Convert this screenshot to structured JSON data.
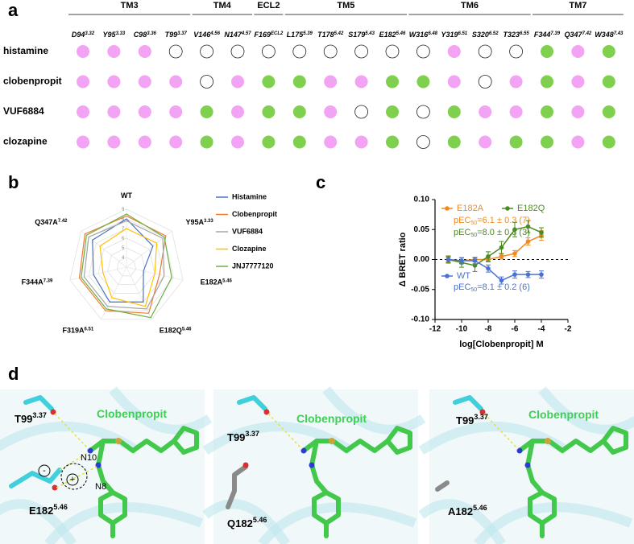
{
  "panel_letters": [
    "a",
    "b",
    "c",
    "d"
  ],
  "panel_a": {
    "groups": [
      {
        "name": "TM3",
        "residues": [
          {
            "name": "D94",
            "sup": "3.32"
          },
          {
            "name": "Y95",
            "sup": "3.33"
          },
          {
            "name": "C98",
            "sup": "3.36"
          },
          {
            "name": "T99",
            "sup": "3.37"
          }
        ]
      },
      {
        "name": "TM4",
        "residues": [
          {
            "name": "V146",
            "sup": "4.56"
          },
          {
            "name": "N147",
            "sup": "4.57"
          }
        ]
      },
      {
        "name": "ECL2",
        "residues": [
          {
            "name": "F169",
            "sup": "ECL2"
          }
        ]
      },
      {
        "name": "TM5",
        "residues": [
          {
            "name": "L175",
            "sup": "5.39"
          },
          {
            "name": "T178",
            "sup": "5.42"
          },
          {
            "name": "S179",
            "sup": "5.43"
          },
          {
            "name": "E182",
            "sup": "5.46"
          }
        ]
      },
      {
        "name": "TM6",
        "residues": [
          {
            "name": "W316",
            "sup": "6.48"
          },
          {
            "name": "Y319",
            "sup": "6.51"
          },
          {
            "name": "S320",
            "sup": "6.52"
          },
          {
            "name": "T323",
            "sup": "6.55"
          }
        ]
      },
      {
        "name": "TM7",
        "residues": [
          {
            "name": "F344",
            "sup": "7.39"
          },
          {
            "name": "Q347",
            "sup": "7.42"
          },
          {
            "name": "W348",
            "sup": "7.43"
          }
        ]
      }
    ],
    "ligands": [
      {
        "name": "histamine",
        "cells": [
          "#f3a3f3",
          "#f3a3f3",
          "#f3a3f3",
          "none",
          "none",
          "none",
          "none",
          "none",
          "none",
          "none",
          "none",
          "none",
          "#f3a3f3",
          "none",
          "none",
          "#7fd04e",
          "#f3a3f3",
          "#7fd04e"
        ]
      },
      {
        "name": "clobenpropit",
        "cells": [
          "#f3a3f3",
          "#f3a3f3",
          "#f3a3f3",
          "#f3a3f3",
          "none",
          "#f3a3f3",
          "#7fd04e",
          "#7fd04e",
          "#f3a3f3",
          "#f3a3f3",
          "#7fd04e",
          "#7fd04e",
          "#f3a3f3",
          "none",
          "#f3a3f3",
          "#7fd04e",
          "#f3a3f3",
          "#7fd04e"
        ]
      },
      {
        "name": "VUF6884",
        "cells": [
          "#f3a3f3",
          "#f3a3f3",
          "#f3a3f3",
          "#f3a3f3",
          "#7fd04e",
          "#f3a3f3",
          "#7fd04e",
          "#7fd04e",
          "#f3a3f3",
          "none",
          "#7fd04e",
          "none",
          "#7fd04e",
          "#f3a3f3",
          "#f3a3f3",
          "#7fd04e",
          "#f3a3f3",
          "#7fd04e"
        ]
      },
      {
        "name": "clozapine",
        "cells": [
          "#f3a3f3",
          "#f3a3f3",
          "#f3a3f3",
          "#f3a3f3",
          "#7fd04e",
          "#f3a3f3",
          "#7fd04e",
          "#7fd04e",
          "#f3a3f3",
          "#f3a3f3",
          "#7fd04e",
          "none",
          "#7fd04e",
          "#f3a3f3",
          "#7fd04e",
          "#7fd04e",
          "#f3a3f3",
          "#7fd04e"
        ]
      }
    ]
  },
  "chart_data": [
    {
      "type": "radar",
      "categories": [
        "WT",
        "Y95A",
        "E182A",
        "E182Q",
        "F319A",
        "F344A",
        "Q347A"
      ],
      "category_sups": [
        null,
        "3.33",
        "5.46",
        "5.46",
        "6.51",
        "7.39",
        "7.42"
      ],
      "rlim": [
        3,
        9
      ],
      "rticks": [
        4,
        5,
        6,
        7,
        8,
        9
      ],
      "series": [
        {
          "name": "Histamine",
          "color": "#4a72c4",
          "values": [
            8,
            6.5,
            4.8,
            7,
            7,
            6.5,
            7.5
          ]
        },
        {
          "name": "Clobenpropit",
          "color": "#ed7d31",
          "values": [
            8.3,
            8.2,
            6.5,
            8.3,
            8,
            8,
            8.5
          ]
        },
        {
          "name": "VUF6884",
          "color": "#a5a5a5",
          "values": [
            7.8,
            7.8,
            7,
            7.8,
            7.5,
            7.5,
            8
          ]
        },
        {
          "name": "Clozapine",
          "color": "#ffc000",
          "values": [
            7,
            7,
            6,
            7.5,
            6.5,
            5.5,
            6.5
          ]
        },
        {
          "name": "JNJ7777120",
          "color": "#70ad47",
          "values": [
            8.5,
            8,
            7.8,
            8.8,
            7.8,
            7.8,
            8.3
          ]
        }
      ]
    },
    {
      "type": "line",
      "xlabel": "log[Clobenpropit] M",
      "ylabel": "Δ BRET ratio",
      "x": [
        -11,
        -10,
        -9,
        -8,
        -7,
        -6,
        -5,
        -4
      ],
      "xlim": [
        -12,
        -2
      ],
      "xticks": [
        -12,
        -10,
        -8,
        -6,
        -4,
        -2
      ],
      "ylim": [
        -0.1,
        0.1
      ],
      "yticks": [
        {
          "value": -0.1,
          "label": "-0.10"
        },
        {
          "value": -0.05,
          "label": "-0.05"
        },
        {
          "value": 0,
          "label": "0.00"
        },
        {
          "value": 0.05,
          "label": "0.05"
        },
        {
          "value": 0.1,
          "label": "0.10"
        }
      ],
      "series": [
        {
          "name": "E182A",
          "color": "#f28a1d",
          "values": [
            0,
            -0.002,
            0,
            0,
            0.005,
            0.01,
            0.03,
            0.04
          ],
          "errors": [
            0.005,
            0.005,
            0.004,
            0.004,
            0.004,
            0.005,
            0.006,
            0.008
          ],
          "annotation": [
            "pEC",
            "50",
            "=6.1 ± 0.3 (7)"
          ]
        },
        {
          "name": "E182Q",
          "color": "#4e8a22",
          "values": [
            0,
            -0.005,
            -0.01,
            0.005,
            0.02,
            0.05,
            0.055,
            0.045
          ],
          "errors": [
            0.006,
            0.008,
            0.01,
            0.008,
            0.01,
            0.012,
            0.01,
            0.008
          ],
          "annotation": [
            "pEC",
            "50",
            "=8.0 ± 0.3 (3)"
          ]
        },
        {
          "name": "WT",
          "color": "#4a72d6",
          "values": [
            0,
            -0.002,
            -0.002,
            -0.015,
            -0.035,
            -0.025,
            -0.025,
            -0.025
          ],
          "errors": [
            0.004,
            0.005,
            0.005,
            0.006,
            0.006,
            0.006,
            0.005,
            0.006
          ],
          "annotation": [
            "pEC",
            "50",
            "=8.1 ± 0.2 (6)"
          ]
        }
      ]
    }
  ],
  "panel_d": {
    "images": [
      {
        "labels": [
          {
            "text": "T99",
            "sup": "3.37"
          },
          {
            "text": "Clobenpropit"
          },
          {
            "text": "N10"
          },
          {
            "text": "N8"
          },
          {
            "text": "E182",
            "sup": "5.46"
          },
          {
            "text": "-"
          },
          {
            "text": "+"
          }
        ]
      },
      {
        "labels": [
          {
            "text": "T99",
            "sup": "3.37"
          },
          {
            "text": "Clobenpropit"
          },
          {
            "text": "Q182",
            "sup": "5.46"
          }
        ]
      },
      {
        "labels": [
          {
            "text": "T99",
            "sup": "3.37"
          },
          {
            "text": "Clobenpropit"
          },
          {
            "text": "A182",
            "sup": "5.46"
          }
        ]
      }
    ]
  }
}
